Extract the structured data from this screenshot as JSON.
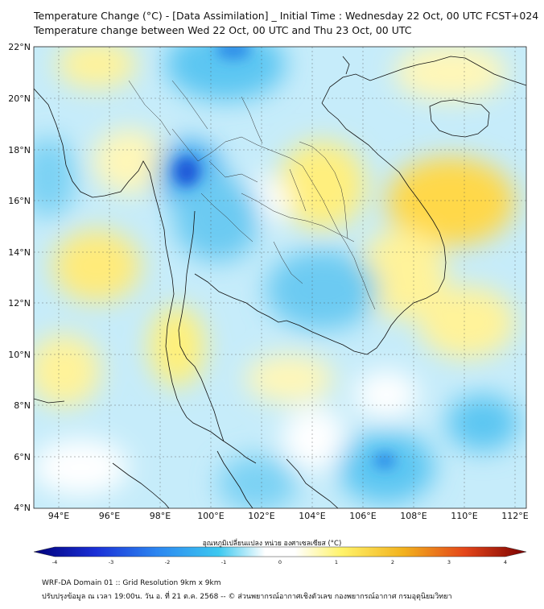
{
  "header": {
    "title_line1": "Temperature Change (°C) - [Data Assimilation] _ Initial Time : Wednesday 22 Oct, 00 UTC FCST+024",
    "title_line2": "Temperature change between Wed 22 Oct, 00 UTC and Thu 23 Oct, 00 UTC"
  },
  "map": {
    "lat_labels": [
      "22°N",
      "20°N",
      "18°N",
      "16°N",
      "14°N",
      "12°N",
      "10°N",
      "8°N",
      "6°N",
      "4°N"
    ],
    "lon_labels": [
      "94°E",
      "96°E",
      "98°E",
      "100°E",
      "102°E",
      "104°E",
      "106°E",
      "108°E",
      "110°E",
      "112°E"
    ]
  },
  "colorbar": {
    "title": "อุณหภูมิเปลี่ยนแปลง หน่วย องศาเซลเซียส (°C)",
    "ticks": [
      "-4",
      "-3",
      "-2",
      "-1",
      "0",
      "1",
      "2",
      "3",
      "4"
    ],
    "colors": [
      "#00007a",
      "#1a2fd6",
      "#2c86f0",
      "#3cc8f0",
      "#ffffff",
      "#fff36a",
      "#f2b21e",
      "#e4461a",
      "#7a0000"
    ]
  },
  "footer": {
    "line1": "WRF-DA Domain 01 :: Grid Resolution 9km x 9km",
    "line2": "ปรับปรุงข้อมูล ณ เวลา 19:00น. วัน อ. ที่ 21 ต.ค. 2568 -- © ส่วนพยากรณ์อากาศเชิงตัวเลข กองพยากรณ์อากาศ กรมอุตุนิยมวิทยา"
  }
}
